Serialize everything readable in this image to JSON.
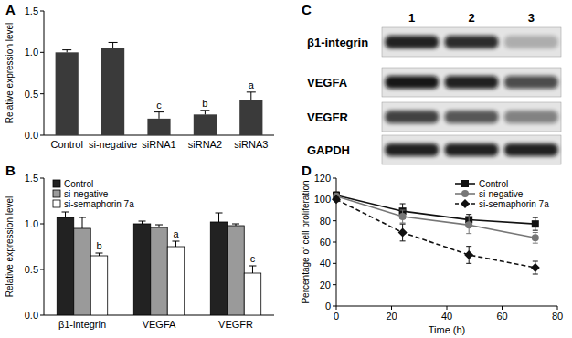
{
  "chart_data": [
    {
      "type": "bar",
      "panel_label": "A",
      "y_label": "Relative expression level",
      "categories": [
        "Control",
        "si-negative",
        "siRNA1",
        "siRNA2",
        "siRNA3"
      ],
      "values": [
        1.0,
        1.05,
        0.2,
        0.25,
        0.42
      ],
      "errors": [
        0.03,
        0.07,
        0.08,
        0.05,
        0.1
      ],
      "annotations": [
        null,
        null,
        "c",
        "b",
        "a"
      ],
      "color": "#3a3a3a",
      "ylim": [
        0,
        1.5
      ],
      "yticks": [
        {
          "value": 0,
          "label": "0.0"
        },
        {
          "value": 0.5,
          "label": "0.5"
        },
        {
          "value": 1,
          "label": "1.0"
        },
        {
          "value": 1.5,
          "label": "1.5"
        }
      ],
      "grid": false
    },
    {
      "type": "bar",
      "panel_label": "B",
      "y_label": "Relative expression level",
      "categories": [
        "β1-integrin",
        "VEGFA",
        "VEGFR"
      ],
      "series": [
        {
          "name": "Control",
          "color": "#222222",
          "values": [
            1.07,
            1.0,
            1.02
          ],
          "errors": [
            0.06,
            0.03,
            0.1
          ]
        },
        {
          "name": "si-negative",
          "color": "#9a9a9a",
          "values": [
            0.95,
            0.96,
            0.98
          ],
          "errors": [
            0.12,
            0.03,
            0.02
          ]
        },
        {
          "name": "si-semaphorin 7a",
          "color": "#ffffff",
          "values": [
            0.65,
            0.75,
            0.46
          ],
          "errors": [
            0.03,
            0.06,
            0.08
          ],
          "annotations": [
            "b",
            "a",
            "c"
          ]
        }
      ],
      "ylim": [
        0,
        1.5
      ],
      "yticks": [
        {
          "value": 0,
          "label": "0.0"
        },
        {
          "value": 0.5,
          "label": "0.5"
        },
        {
          "value": 1,
          "label": "1.0"
        },
        {
          "value": 1.5,
          "label": "1.5"
        }
      ],
      "legend": "top-left",
      "grid": false
    },
    {
      "type": "line",
      "panel_label": "D",
      "x_label": "Time (h)",
      "y_label": "Percentage of cell proliferation",
      "x": [
        0,
        24,
        48,
        72
      ],
      "series": [
        {
          "name": "Control",
          "color": "#111111",
          "marker": "square",
          "line_style": "solid",
          "values": [
            104,
            89,
            81,
            77
          ],
          "errors": [
            3,
            7,
            5,
            6
          ]
        },
        {
          "name": "si-negative",
          "color": "#777777",
          "marker": "circle",
          "line_style": "solid",
          "values": [
            103,
            84,
            76,
            64
          ],
          "errors": [
            2,
            6,
            8,
            5
          ]
        },
        {
          "name": "si-semaphorin 7a",
          "color": "#111111",
          "marker": "diamond",
          "line_style": "dashed",
          "values": [
            100,
            69,
            48,
            36
          ],
          "errors": [
            2,
            8,
            8,
            6
          ]
        }
      ],
      "xlim": [
        0,
        80
      ],
      "xticks": [
        0,
        20,
        40,
        60,
        80
      ],
      "ylim": [
        0,
        120
      ],
      "yticks": [
        0,
        20,
        40,
        60,
        80,
        100,
        120
      ],
      "legend": "top-right",
      "grid": false
    }
  ],
  "blot": {
    "panel_label": "C",
    "lanes": [
      "1",
      "2",
      "3"
    ],
    "rows": [
      "β1-integrin",
      "VEGFA",
      "VEGFR",
      "GAPDH"
    ]
  }
}
